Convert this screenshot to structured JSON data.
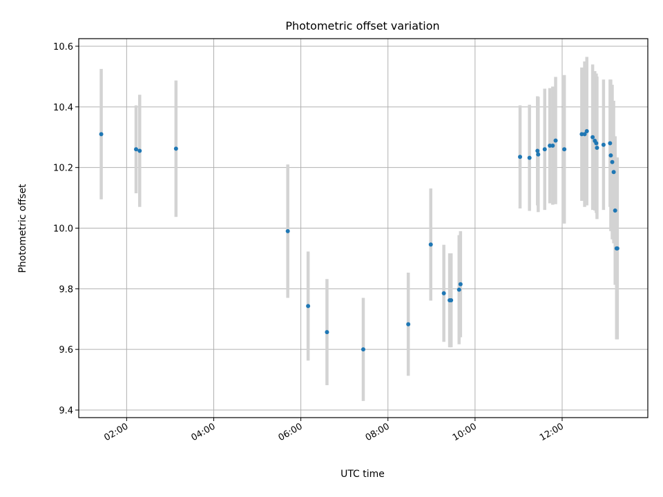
{
  "chart_data": {
    "type": "scatter",
    "title": "Photometric offset variation",
    "xlabel": "UTC time",
    "ylabel": "Photometric offset",
    "xlim": [
      "00:54",
      "13:58"
    ],
    "ylim": [
      9.375,
      10.625
    ],
    "x_ticks": [
      "02:00",
      "04:00",
      "06:00",
      "08:00",
      "10:00",
      "12:00"
    ],
    "y_ticks": [
      "9.4",
      "9.6",
      "9.8",
      "10.0",
      "10.2",
      "10.4",
      "10.6"
    ],
    "grid": true,
    "point_color": "#1f77b4",
    "errorbar_color": "#d3d3d3",
    "series": [
      {
        "points": [
          {
            "t": "01:25",
            "y": 10.31,
            "err": 0.215
          },
          {
            "t": "02:13",
            "y": 10.26,
            "err": 0.145
          },
          {
            "t": "02:18",
            "y": 10.255,
            "err": 0.185
          },
          {
            "t": "03:08",
            "y": 10.262,
            "err": 0.225
          },
          {
            "t": "05:42",
            "y": 9.99,
            "err": 0.22
          },
          {
            "t": "06:10",
            "y": 9.743,
            "err": 0.18
          },
          {
            "t": "06:36",
            "y": 9.657,
            "err": 0.175
          },
          {
            "t": "07:26",
            "y": 9.6,
            "err": 0.17
          },
          {
            "t": "08:28",
            "y": 9.683,
            "err": 0.17
          },
          {
            "t": "08:59",
            "y": 9.946,
            "err": 0.185
          },
          {
            "t": "09:17",
            "y": 9.785,
            "err": 0.16
          },
          {
            "t": "09:25",
            "y": 9.762,
            "err": 0.155
          },
          {
            "t": "09:27",
            "y": 9.762,
            "err": 0.155
          },
          {
            "t": "09:38",
            "y": 9.797,
            "err": 0.18
          },
          {
            "t": "09:40",
            "y": 9.815,
            "err": 0.175
          },
          {
            "t": "11:02",
            "y": 10.235,
            "err": 0.17
          },
          {
            "t": "11:15",
            "y": 10.232,
            "err": 0.175
          },
          {
            "t": "11:26",
            "y": 10.255,
            "err": 0.18
          },
          {
            "t": "11:27",
            "y": 10.243,
            "err": 0.19
          },
          {
            "t": "11:36",
            "y": 10.26,
            "err": 0.2
          },
          {
            "t": "11:43",
            "y": 10.272,
            "err": 0.19
          },
          {
            "t": "11:47",
            "y": 10.272,
            "err": 0.195
          },
          {
            "t": "11:51",
            "y": 10.289,
            "err": 0.21
          },
          {
            "t": "12:03",
            "y": 10.26,
            "err": 0.245
          },
          {
            "t": "12:27",
            "y": 10.31,
            "err": 0.22
          },
          {
            "t": "12:31",
            "y": 10.31,
            "err": 0.24
          },
          {
            "t": "12:34",
            "y": 10.32,
            "err": 0.245
          },
          {
            "t": "12:42",
            "y": 10.3,
            "err": 0.24
          },
          {
            "t": "12:45",
            "y": 10.288,
            "err": 0.23
          },
          {
            "t": "12:47",
            "y": 10.28,
            "err": 0.23
          },
          {
            "t": "12:48",
            "y": 10.265,
            "err": 0.235
          },
          {
            "t": "12:57",
            "y": 10.275,
            "err": 0.215
          },
          {
            "t": "13:06",
            "y": 10.28,
            "err": 0.21
          },
          {
            "t": "13:07",
            "y": 10.24,
            "err": 0.25
          },
          {
            "t": "13:09",
            "y": 10.218,
            "err": 0.255
          },
          {
            "t": "13:11",
            "y": 10.185,
            "err": 0.235
          },
          {
            "t": "13:13",
            "y": 10.058,
            "err": 0.245
          },
          {
            "t": "13:15",
            "y": 9.933,
            "err": 0.3
          },
          {
            "t": "13:16",
            "y": 9.933,
            "err": 0.3
          }
        ]
      }
    ]
  }
}
